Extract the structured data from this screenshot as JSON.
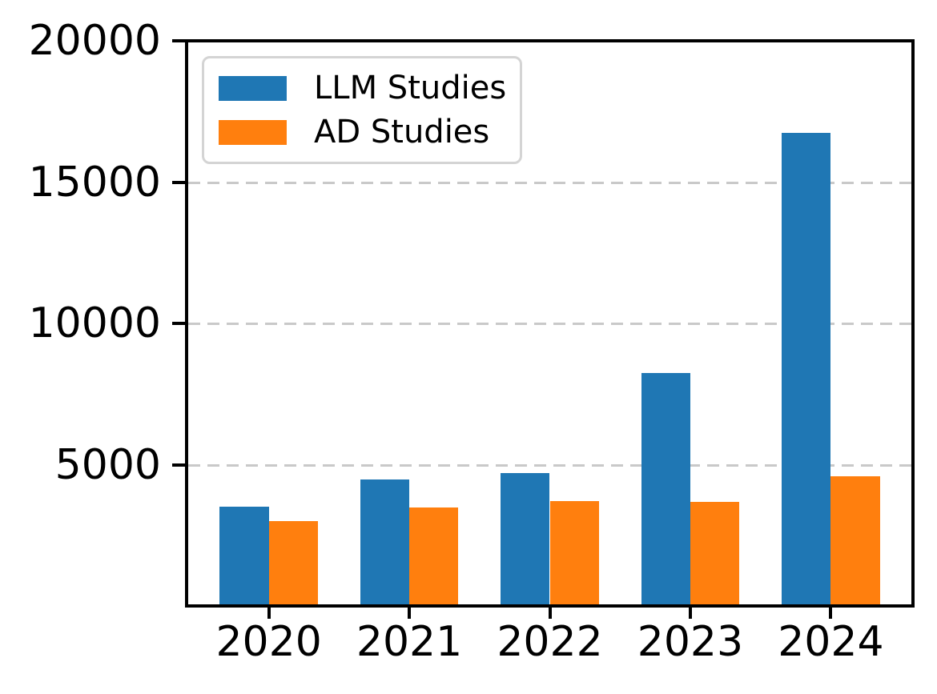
{
  "chart_data": {
    "type": "bar",
    "title": "",
    "xlabel": "",
    "ylabel": "",
    "categories": [
      "2020",
      "2021",
      "2022",
      "2023",
      "2024"
    ],
    "series": [
      {
        "name": "LLM Studies",
        "color": "#1f77b4",
        "values": [
          3480,
          4450,
          4670,
          8240,
          16770
        ]
      },
      {
        "name": "AD Studies",
        "color": "#ff7f0e",
        "values": [
          2960,
          3450,
          3670,
          3660,
          4560
        ]
      }
    ],
    "ylim": [
      0,
      20000
    ],
    "yticks": [
      5000,
      10000,
      15000,
      20000
    ],
    "ytick_labels": [
      "5000",
      "10000",
      "15000",
      "20000"
    ],
    "grid": {
      "values": [
        5000,
        10000,
        15000
      ],
      "style": "dashed",
      "color": "#c9c9c9"
    },
    "legend": {
      "position": "upper-left",
      "entries": [
        "LLM Studies",
        "AD Studies"
      ]
    }
  },
  "colors": {
    "axis": "#000000",
    "background": "#ffffff",
    "grid": "#c9c9c9",
    "legend_border": "#d4d4d4"
  }
}
